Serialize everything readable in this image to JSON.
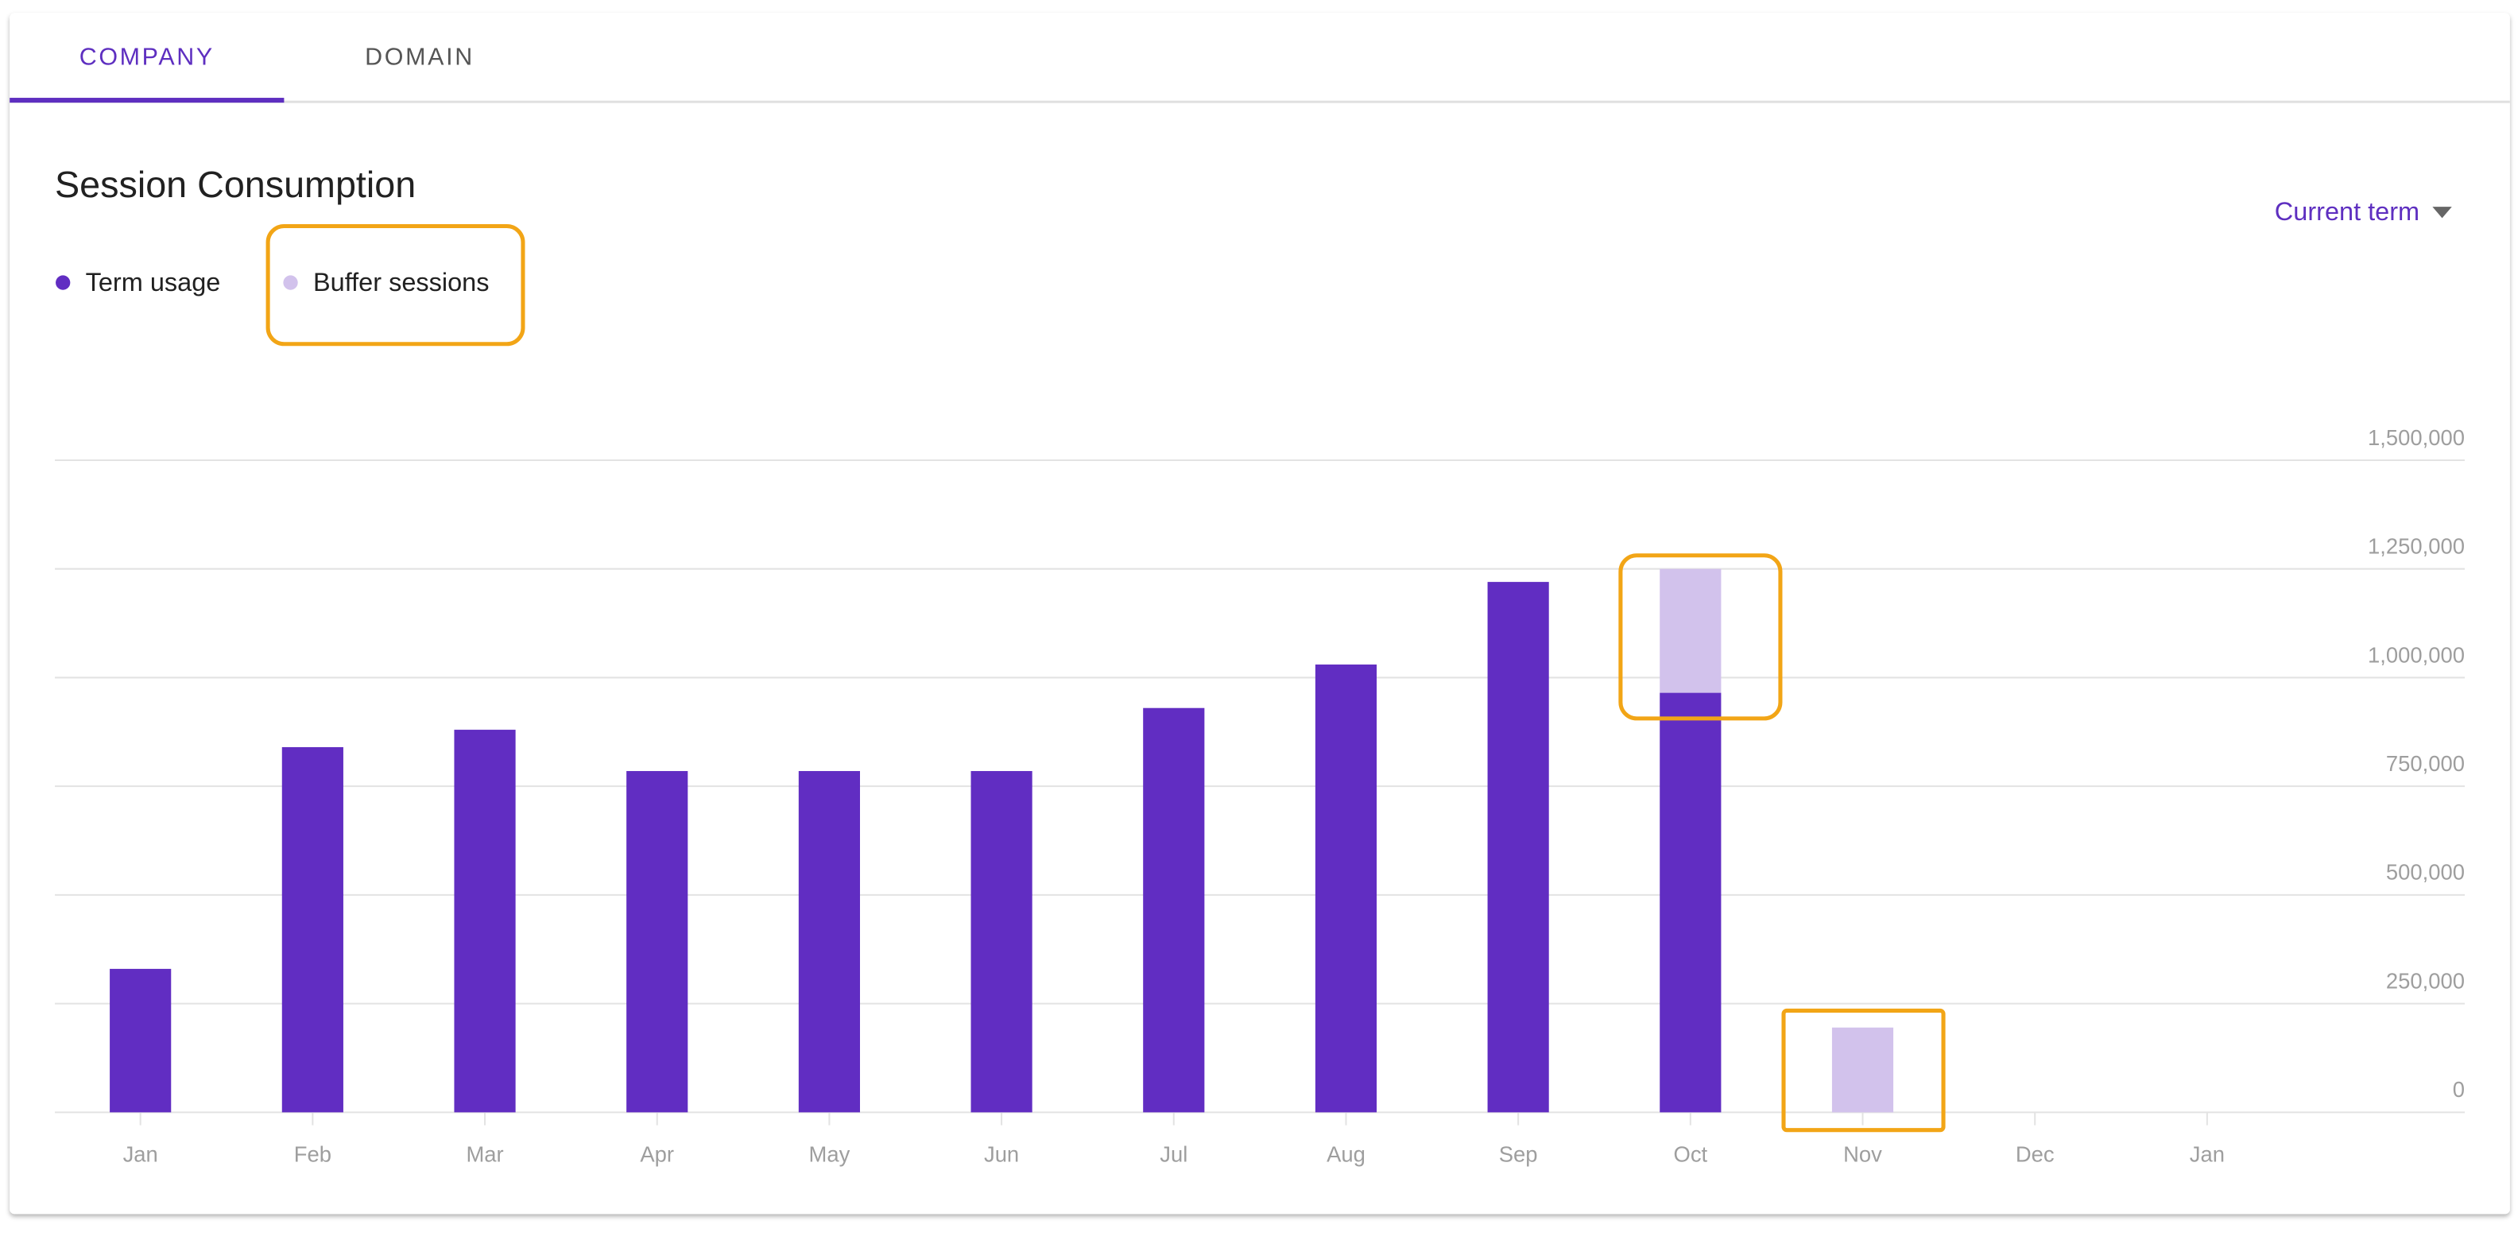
{
  "tabs": [
    "COMPANY",
    "DOMAIN"
  ],
  "filter": "Current term",
  "chart_data": {
    "type": "stacked-bar",
    "title": "Session Consumption",
    "categories": [
      "Jan",
      "Feb",
      "Mar",
      "Apr",
      "May",
      "Jun",
      "Jul",
      "Aug",
      "Sep",
      "Oct",
      "Nov",
      "Dec",
      "Jan"
    ],
    "series": [
      {
        "name": "Term usage",
        "color": "#612dc2",
        "values": [
          330000,
          840000,
          880000,
          785000,
          785000,
          785000,
          930000,
          1030000,
          1220000,
          965000,
          null,
          null,
          null
        ]
      },
      {
        "name": "Buffer sessions",
        "color": "#d2c2ec",
        "values": [
          null,
          null,
          null,
          null,
          null,
          null,
          null,
          null,
          null,
          285000,
          195000,
          null,
          null
        ]
      }
    ],
    "ylim": [
      0,
      1500000
    ],
    "yticks": [
      0,
      {
        "value": 250000,
        "label": "250,000"
      },
      {
        "value": 500000,
        "label": "500,000"
      },
      {
        "value": 750000,
        "label": "750,000"
      },
      {
        "value": 1000000,
        "label": "1,000,000"
      },
      {
        "value": 1250000,
        "label": "1,250,000"
      },
      {
        "value": 1500000,
        "label": "1,500,000"
      }
    ],
    "grid": true
  }
}
